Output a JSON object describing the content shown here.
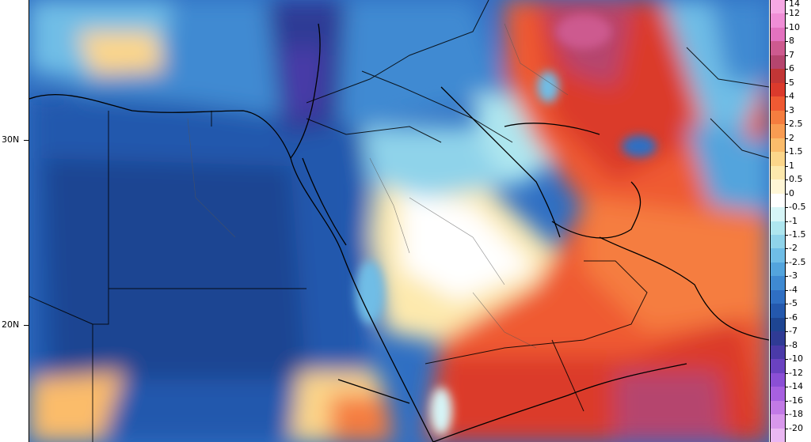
{
  "latitude_labels": [
    {
      "text": "30N",
      "lat": 30
    },
    {
      "text": "20N",
      "lat": 20
    }
  ],
  "colorbar": {
    "levels": [
      {
        "label": "14",
        "color": "#f6a8e4"
      },
      {
        "label": "12",
        "color": "#ef8ed6"
      },
      {
        "label": "10",
        "color": "#e372bf"
      },
      {
        "label": "8",
        "color": "#cd5a8f"
      },
      {
        "label": "7",
        "color": "#b5456e"
      },
      {
        "label": "6",
        "color": "#c23636"
      },
      {
        "label": "5",
        "color": "#db3a2c"
      },
      {
        "label": "4",
        "color": "#ef5a33"
      },
      {
        "label": "3",
        "color": "#f57d3f"
      },
      {
        "label": "2.5",
        "color": "#f99c52"
      },
      {
        "label": "2",
        "color": "#fbbc6b"
      },
      {
        "label": "1.5",
        "color": "#fcd68a"
      },
      {
        "label": "1",
        "color": "#fde9ad"
      },
      {
        "label": "0.5",
        "color": "#fff6d6"
      },
      {
        "label": "0",
        "color": "#ffffff"
      },
      {
        "label": "-0.5",
        "color": "#d6f5f7"
      },
      {
        "label": "-1",
        "color": "#aee6ef"
      },
      {
        "label": "-1.5",
        "color": "#8fd3ea"
      },
      {
        "label": "-2",
        "color": "#6fbde6"
      },
      {
        "label": "-2.5",
        "color": "#53a4dd"
      },
      {
        "label": "-3",
        "color": "#3f8ad2"
      },
      {
        "label": "-4",
        "color": "#2f6fc3"
      },
      {
        "label": "-5",
        "color": "#2458ad"
      },
      {
        "label": "-6",
        "color": "#1e4592"
      },
      {
        "label": "-7",
        "color": "#2f3b95"
      },
      {
        "label": "-8",
        "color": "#4a3aa8"
      },
      {
        "label": "-10",
        "color": "#6a42c0"
      },
      {
        "label": "-12",
        "color": "#8b4fd5"
      },
      {
        "label": "-14",
        "color": "#a760e0"
      },
      {
        "label": "-16",
        "color": "#c27ae6"
      },
      {
        "label": "-18",
        "color": "#d898ec"
      },
      {
        "label": "-20",
        "color": "#eab8f2"
      }
    ]
  }
}
